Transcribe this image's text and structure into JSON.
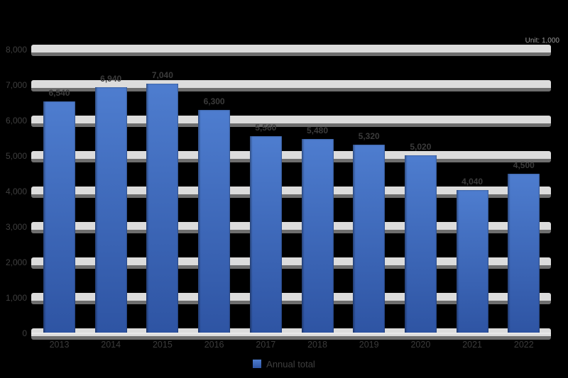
{
  "chart_data": {
    "type": "bar",
    "title": "",
    "unit_note": "Unit: 1,000",
    "legend": "Annual total",
    "categories": [
      "2013",
      "2014",
      "2015",
      "2016",
      "2017",
      "2018",
      "2019",
      "2020",
      "2021",
      "2022"
    ],
    "values": [
      6540,
      6940,
      7040,
      6300,
      5560,
      5480,
      5320,
      5020,
      4040,
      4500
    ],
    "value_labels": [
      "6,540",
      "6,940",
      "7,040",
      "6,300",
      "5,560",
      "5,480",
      "5,320",
      "5,020",
      "4,040",
      "4,500"
    ],
    "ylim": [
      0,
      8000
    ],
    "ytick_step": 1000,
    "yticks": [
      {
        "value": 0,
        "label": "0"
      },
      {
        "value": 1000,
        "label": "1,000"
      },
      {
        "value": 2000,
        "label": "2,000"
      },
      {
        "value": 3000,
        "label": "3,000"
      },
      {
        "value": 4000,
        "label": "4,000"
      },
      {
        "value": 5000,
        "label": "5,000"
      },
      {
        "value": 6000,
        "label": "6,000"
      },
      {
        "value": 7000,
        "label": "7,000"
      },
      {
        "value": 8000,
        "label": "8,000"
      }
    ],
    "grid": true,
    "legend_position": "bottom-center",
    "colors": {
      "background": "#000000",
      "bar_top": "#4e7dcf",
      "bar_bottom": "#2e54a3",
      "gridline": "#dcdcdc",
      "gridline_shadow": "#6e6e6e",
      "axis_line": "#e8e8e8",
      "text": "#3b3b3b",
      "unit_note_text": "#9a9a9a"
    }
  }
}
